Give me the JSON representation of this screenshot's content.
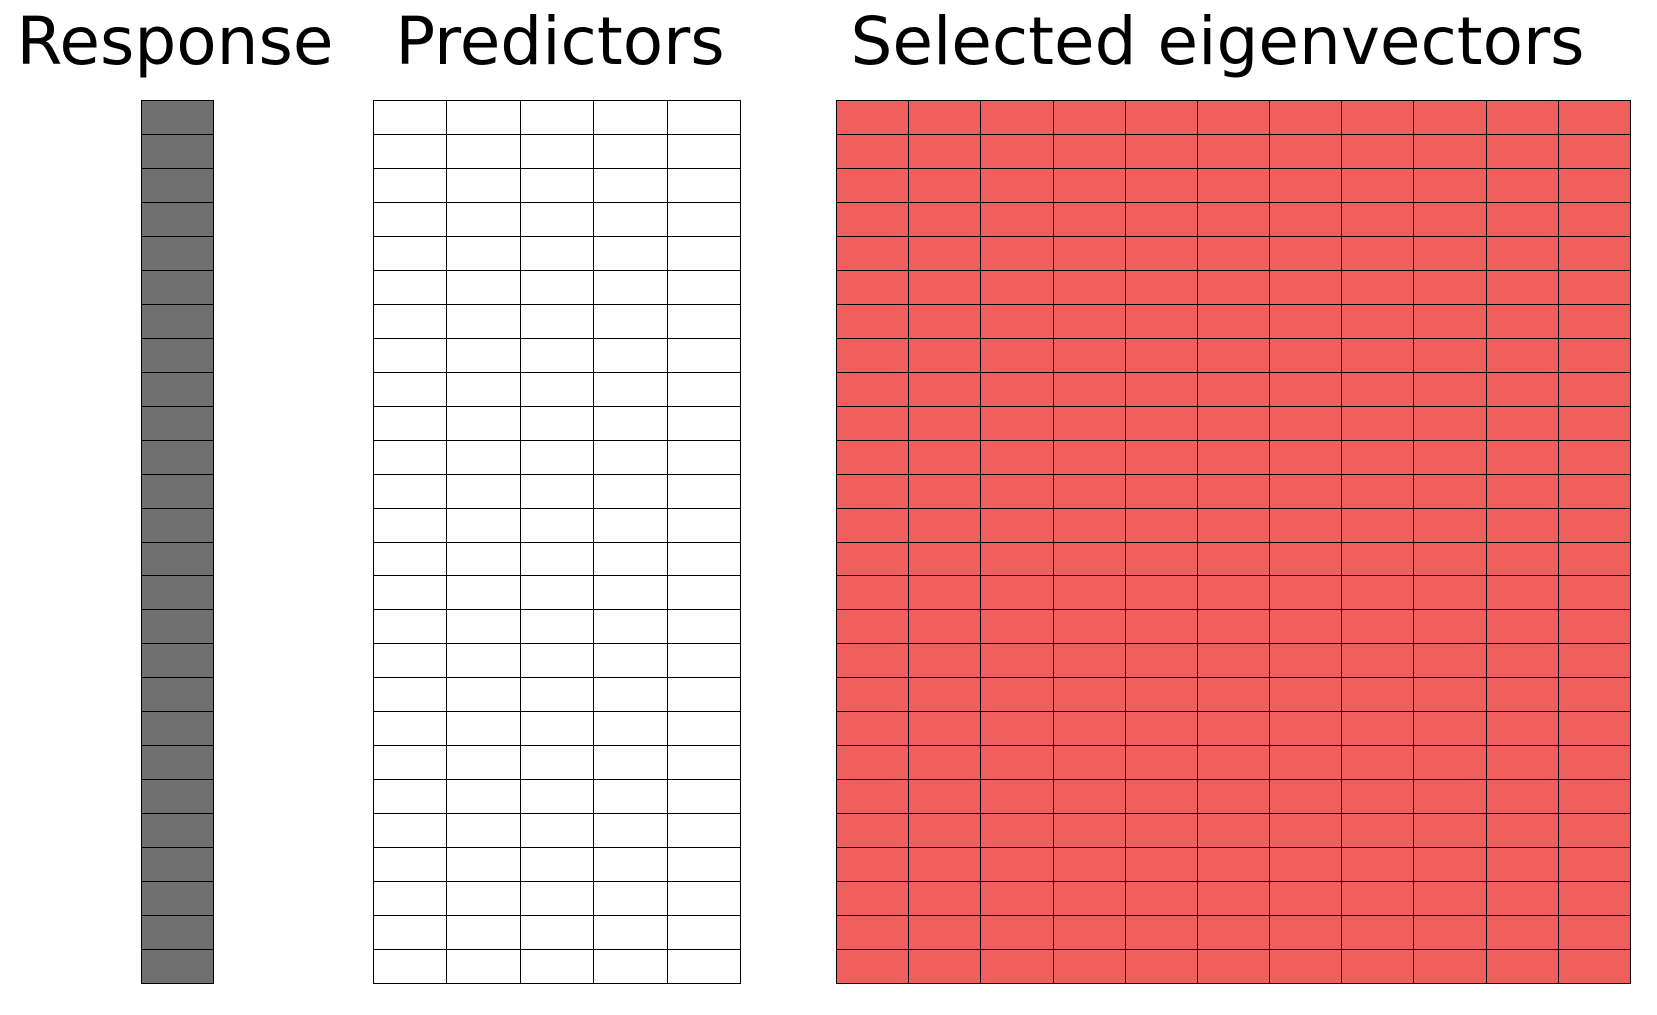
{
  "panels": {
    "response": {
      "title": "Response",
      "rows": 26,
      "cols": 1,
      "fill_color": "#707070"
    },
    "predictors": {
      "title": "Predictors",
      "rows": 26,
      "cols": 5,
      "fill_color": "#ffffff"
    },
    "eigenvectors": {
      "title": "Selected eigenvectors",
      "rows": 26,
      "cols": 11,
      "fill_color": "#f05f5c"
    }
  },
  "grid_line_color": "#000000"
}
